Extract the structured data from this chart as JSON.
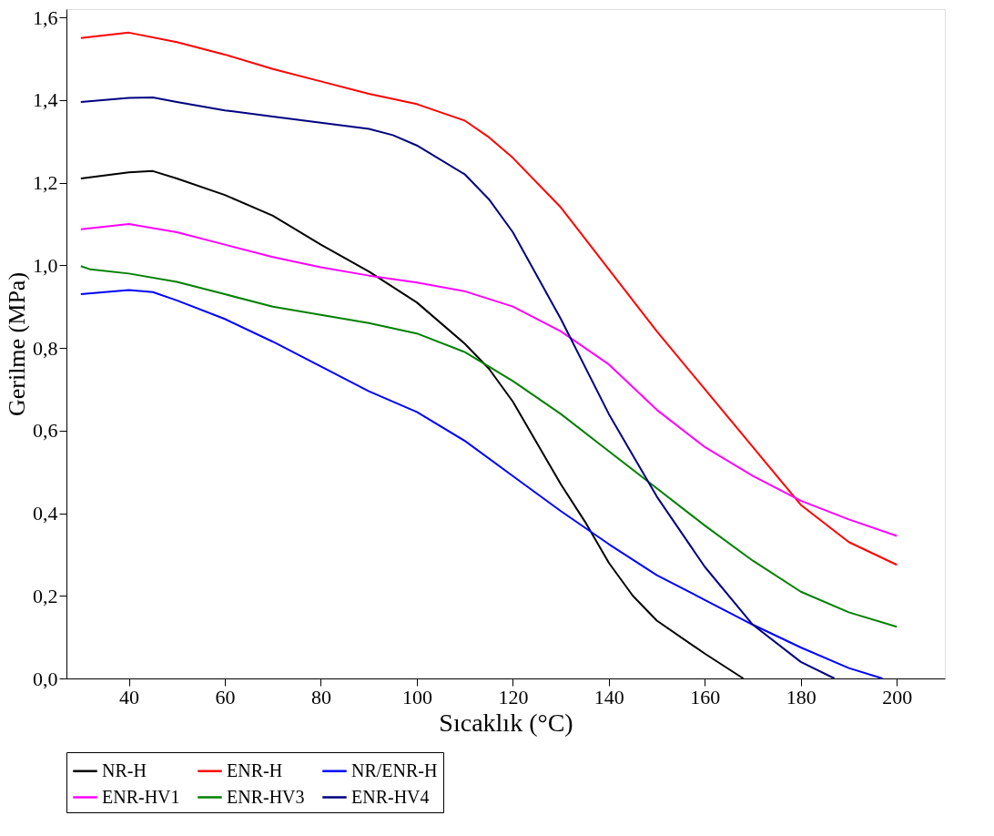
{
  "chart_data": {
    "type": "line",
    "xlabel": "Sıcaklık  (°C)",
    "ylabel": "Gerilme (MPa)",
    "xlim": [
      27,
      210
    ],
    "ylim": [
      0,
      1.62
    ],
    "xticks": [
      40,
      60,
      80,
      100,
      120,
      140,
      160,
      180,
      200
    ],
    "yticks": [
      {
        "value": 0,
        "label": "0,0"
      },
      {
        "value": 0.2,
        "label": "0,2"
      },
      {
        "value": 0.4,
        "label": "0,4"
      },
      {
        "value": 0.6,
        "label": "0,6"
      },
      {
        "value": 0.8,
        "label": "0,8"
      },
      {
        "value": 1.0,
        "label": "1,0"
      },
      {
        "value": 1.2,
        "label": "1,2"
      },
      {
        "value": 1.4,
        "label": "1,4"
      },
      {
        "value": 1.6,
        "label": "1,6"
      }
    ],
    "grid": false,
    "legend": "bottom",
    "marker": "none",
    "line_style": "solid",
    "series": [
      {
        "name": "NR-H",
        "color": "#000000",
        "x": [
          30,
          40,
          45,
          50,
          60,
          70,
          80,
          90,
          100,
          110,
          115,
          120,
          130,
          135,
          140,
          145,
          150,
          160,
          168
        ],
        "values": [
          1.21,
          1.225,
          1.228,
          1.21,
          1.17,
          1.12,
          1.05,
          0.985,
          0.91,
          0.81,
          0.75,
          0.67,
          0.47,
          0.38,
          0.28,
          0.2,
          0.14,
          0.06,
          0.0
        ]
      },
      {
        "name": "ENR-H",
        "color": "#ff0000",
        "x": [
          30,
          40,
          50,
          60,
          70,
          80,
          90,
          100,
          110,
          115,
          120,
          130,
          140,
          150,
          160,
          170,
          180,
          190,
          200
        ],
        "values": [
          1.55,
          1.563,
          1.54,
          1.51,
          1.475,
          1.445,
          1.415,
          1.39,
          1.35,
          1.31,
          1.26,
          1.14,
          0.99,
          0.84,
          0.7,
          0.56,
          0.42,
          0.33,
          0.275
        ]
      },
      {
        "name": "NR/ENR-H",
        "color": "#0000ff",
        "x": [
          30,
          40,
          45,
          50,
          60,
          70,
          80,
          90,
          100,
          110,
          120,
          130,
          140,
          150,
          160,
          170,
          180,
          190,
          197
        ],
        "values": [
          0.93,
          0.94,
          0.935,
          0.915,
          0.87,
          0.815,
          0.755,
          0.695,
          0.645,
          0.575,
          0.49,
          0.405,
          0.325,
          0.25,
          0.19,
          0.13,
          0.075,
          0.025,
          0.0
        ]
      },
      {
        "name": "ENR-HV1",
        "color": "#ff00ff",
        "x": [
          30,
          40,
          50,
          60,
          70,
          80,
          90,
          100,
          110,
          120,
          130,
          140,
          150,
          160,
          170,
          180,
          190,
          200
        ],
        "values": [
          1.087,
          1.1,
          1.08,
          1.05,
          1.02,
          0.995,
          0.975,
          0.958,
          0.937,
          0.9,
          0.84,
          0.76,
          0.65,
          0.56,
          0.49,
          0.43,
          0.385,
          0.345
        ]
      },
      {
        "name": "ENR-HV3",
        "color": "#008000",
        "x": [
          30,
          32,
          40,
          50,
          60,
          70,
          80,
          90,
          100,
          110,
          120,
          130,
          140,
          150,
          160,
          170,
          180,
          190,
          200
        ],
        "values": [
          0.998,
          0.99,
          0.98,
          0.96,
          0.93,
          0.9,
          0.88,
          0.86,
          0.835,
          0.79,
          0.72,
          0.64,
          0.55,
          0.46,
          0.37,
          0.285,
          0.21,
          0.16,
          0.125
        ]
      },
      {
        "name": "ENR-HV4",
        "color": "#000080",
        "x": [
          30,
          40,
          45,
          50,
          60,
          70,
          80,
          90,
          95,
          100,
          110,
          115,
          120,
          130,
          140,
          150,
          160,
          170,
          180,
          187
        ],
        "values": [
          1.395,
          1.405,
          1.406,
          1.395,
          1.375,
          1.36,
          1.345,
          1.33,
          1.315,
          1.29,
          1.22,
          1.16,
          1.08,
          0.87,
          0.64,
          0.44,
          0.27,
          0.13,
          0.04,
          0.0
        ]
      }
    ]
  }
}
